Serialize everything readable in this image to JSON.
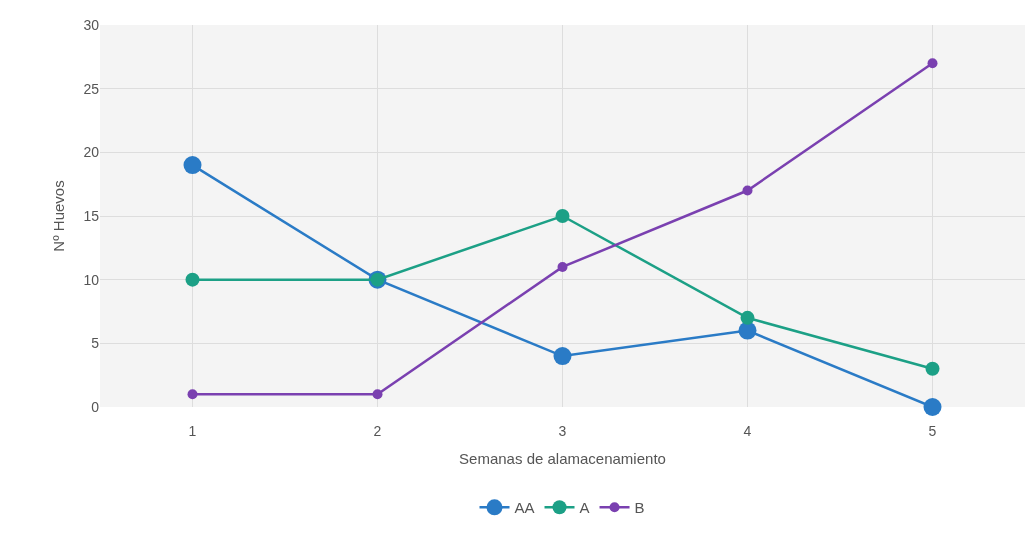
{
  "chart_data": {
    "type": "line",
    "xlabel": "Semanas de alamacenamiento",
    "ylabel": "Nº Huevos",
    "categories": [
      "1",
      "2",
      "3",
      "4",
      "5"
    ],
    "series": [
      {
        "name": "AA",
        "color": "#2a7bc6",
        "values": [
          19,
          10,
          4,
          6,
          0
        ]
      },
      {
        "name": "A",
        "color": "#1ca086",
        "values": [
          10,
          10,
          15,
          7,
          3
        ]
      },
      {
        "name": "B",
        "color": "#7a40b0",
        "values": [
          1,
          1,
          11,
          17,
          27
        ]
      }
    ],
    "ylim": [
      0,
      30
    ],
    "yticks": [
      0,
      5,
      10,
      15,
      20,
      25,
      30
    ],
    "grid": true,
    "legend": "bottom",
    "marker": "circle",
    "line_style": "solid"
  }
}
